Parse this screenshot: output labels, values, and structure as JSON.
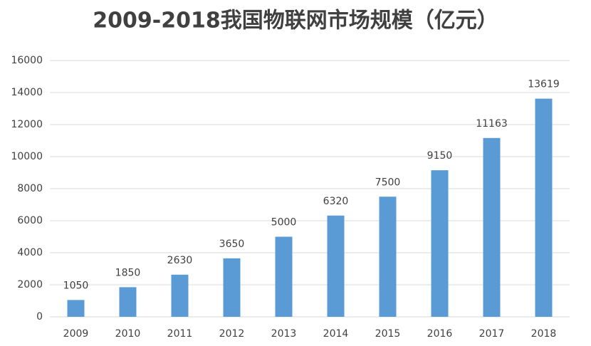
{
  "chart_data": {
    "type": "bar",
    "title": "2009-2018我国物联网市场规模（亿元）",
    "categories": [
      "2009",
      "2010",
      "2011",
      "2012",
      "2013",
      "2014",
      "2015",
      "2016",
      "2017",
      "2018"
    ],
    "values": [
      1050,
      1850,
      2630,
      3650,
      5000,
      6320,
      7500,
      9150,
      11163,
      13619
    ],
    "color": "#5b9bd5",
    "ylim": [
      0,
      16000
    ],
    "yticks": [
      0,
      2000,
      4000,
      6000,
      8000,
      10000,
      12000,
      14000,
      16000
    ],
    "grid": true
  }
}
